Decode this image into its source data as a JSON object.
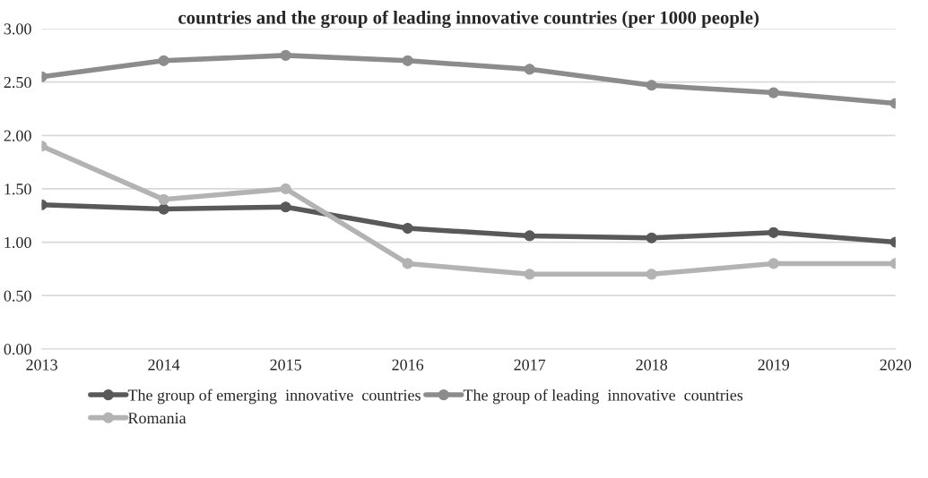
{
  "chart_data": {
    "type": "line",
    "title": "countries and the group of leading innovative countries (per 1000 people)",
    "x": [
      2013,
      2014,
      2015,
      2016,
      2017,
      2018,
      2019,
      2020
    ],
    "series": [
      {
        "name": "The group of emerging  innovative  countries",
        "color": "#595959",
        "values": [
          1.35,
          1.31,
          1.33,
          1.13,
          1.06,
          1.04,
          1.09,
          1.0
        ]
      },
      {
        "name": "The group of leading  innovative  countries",
        "color": "#8c8c8c",
        "values": [
          2.55,
          2.7,
          2.75,
          2.7,
          2.62,
          2.47,
          2.4,
          2.3
        ]
      },
      {
        "name": "Romania",
        "color": "#b3b3b3",
        "values": [
          1.9,
          1.4,
          1.5,
          0.8,
          0.7,
          0.7,
          0.8,
          0.8
        ]
      }
    ],
    "xlim": [
      2013,
      2020
    ],
    "xticks": [
      2013,
      2014,
      2015,
      2016,
      2017,
      2018,
      2019,
      2020
    ],
    "ylim": [
      0,
      3
    ],
    "yticks": [
      {
        "value": 0,
        "label": "0.00"
      },
      {
        "value": 0.5,
        "label": "0.50"
      },
      {
        "value": 1,
        "label": "1.00"
      },
      {
        "value": 1.5,
        "label": "1.50"
      },
      {
        "value": 2,
        "label": "2.00"
      },
      {
        "value": 2.5,
        "label": "2.50"
      },
      {
        "value": 3,
        "label": "3.00"
      }
    ],
    "grid": "y",
    "legend": "bottom",
    "marker": "circle",
    "line_style": "solid"
  }
}
